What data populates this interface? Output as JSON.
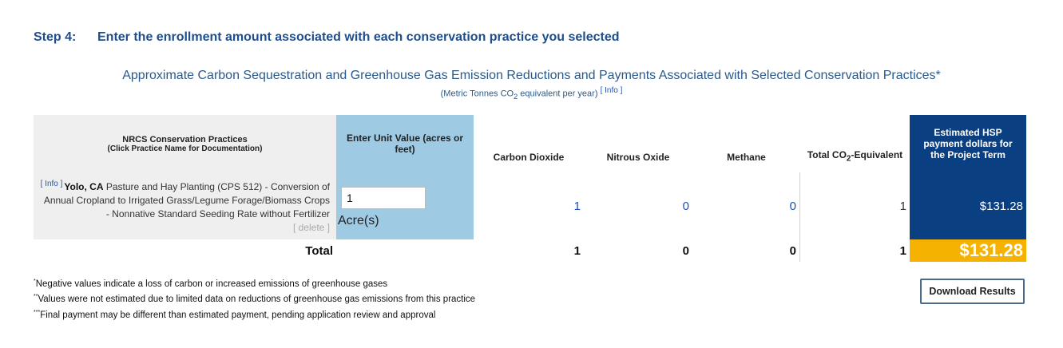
{
  "step": {
    "number": "Step 4:",
    "title": "Enter the enrollment amount associated with each conservation practice you selected"
  },
  "subtitle": "Approximate Carbon Sequestration and Greenhouse Gas Emission Reductions and Payments Associated with Selected Conservation Practices*",
  "units": {
    "prefix": "(Metric Tonnes CO",
    "sub": "2",
    "suffix": " equivalent per year)",
    "info": "[ Info ]"
  },
  "table": {
    "headers": {
      "practices_title": "NRCS Conservation Practices",
      "practices_hint": "(Click Practice Name for Documentation)",
      "unit_value": "Enter Unit Value (acres or feet)",
      "co2": "Carbon Dioxide",
      "n2o": "Nitrous Oxide",
      "ch4": "Methane",
      "total_prefix": "Total CO",
      "total_sub": "2",
      "total_suffix": "-Equivalent",
      "payment": "Estimated HSP payment dollars for the Project Term"
    },
    "row": {
      "info": "[ Info ]",
      "location": "Yolo, CA",
      "practice": " Pasture and Hay Planting (CPS 512) - Conversion of Annual Cropland to Irrigated Grass/Legume Forage/Biomass Crops - Nonnative Standard Seeding Rate without Fertilizer",
      "delete": "[ delete ]",
      "unit_value": "1",
      "unit_label": "Acre(s)",
      "co2": "1",
      "n2o": "0",
      "ch4": "0",
      "total": "1",
      "payment": "$131.28"
    },
    "totals": {
      "label": "Total",
      "co2": "1",
      "n2o": "0",
      "ch4": "0",
      "total": "1",
      "payment": "$131.28"
    }
  },
  "notes": [
    {
      "mark": "*",
      "text": "Negative values indicate a loss of carbon or increased emissions of greenhouse gases"
    },
    {
      "mark": "**",
      "text": "Values were not estimated due to limited data on reductions of greenhouse gas emissions from this practice"
    },
    {
      "mark": "***",
      "text": "Final payment may be different than estimated payment, pending application review and approval"
    }
  ],
  "download_label": "Download Results",
  "colors": {
    "navy": "#0a3f82",
    "light_blue": "#9fcae3",
    "gold": "#f6b200",
    "heading": "#1f4e8c"
  }
}
